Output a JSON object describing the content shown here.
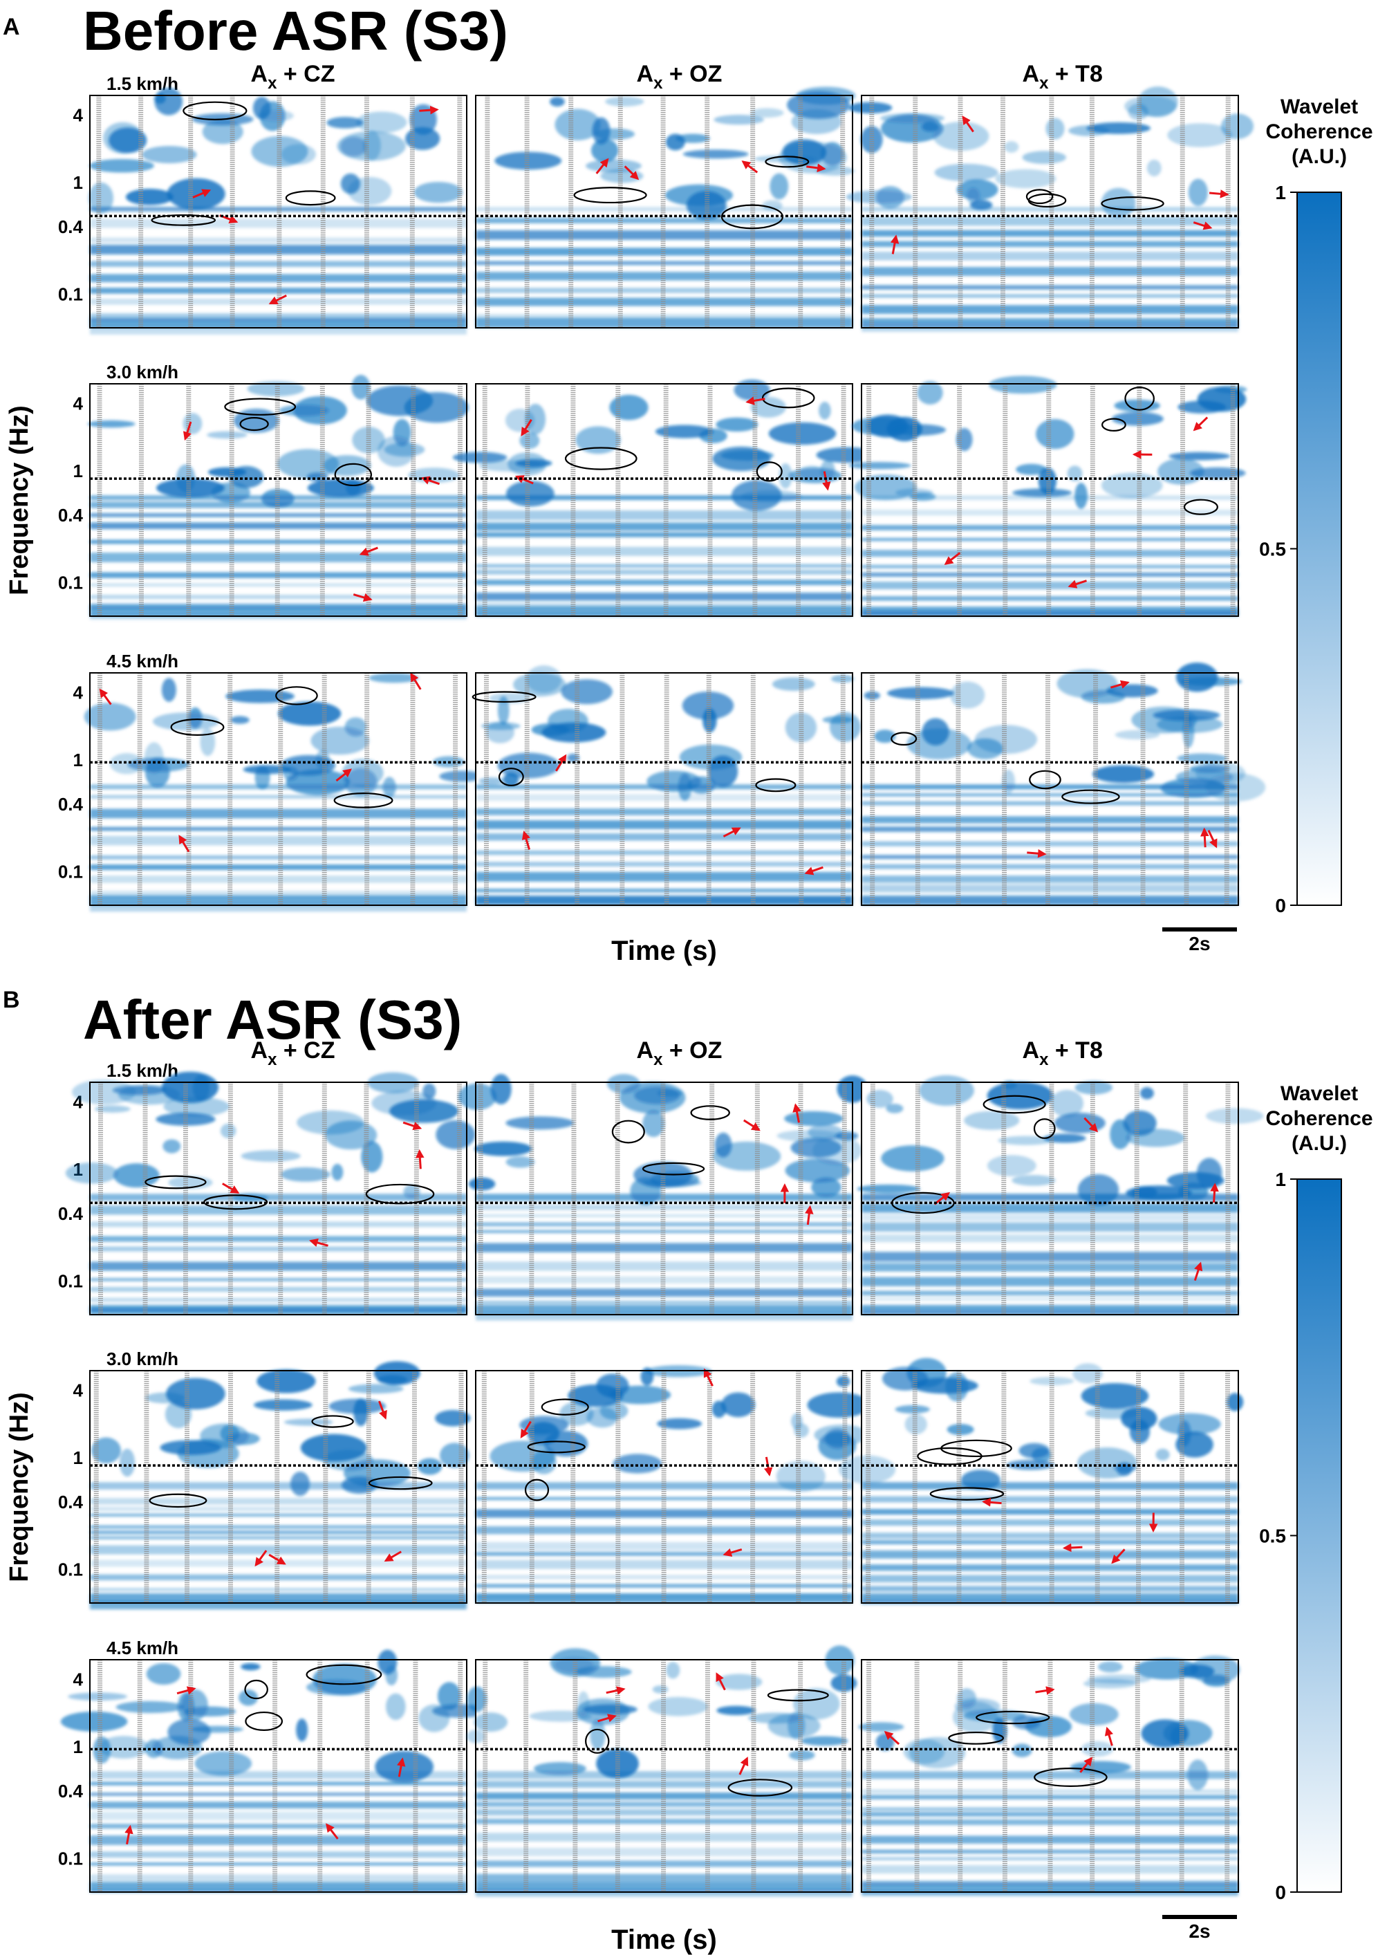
{
  "chart_data": [
    {
      "type": "heatmap",
      "panel_letter": "A",
      "title": "Before ASR (S3)",
      "xlabel": "Time (s)",
      "ylabel": "Frequency (Hz)",
      "columns": [
        "CZ",
        "OZ",
        "T8"
      ],
      "column_prefix": "A",
      "column_subscript": "x",
      "rows": [
        "1.5 km/h",
        "3.0 km/h",
        "4.5 km/h"
      ],
      "y_ticks": [
        "4",
        "1",
        "0.4",
        "0.1"
      ],
      "y_scale": "log",
      "scale_bar": "2s",
      "dotted_line_hz": [
        0.5,
        0.85,
        0.95
      ],
      "colorbar": {
        "title_lines": [
          "Wavelet",
          "Coherence",
          "(A.U.)"
        ],
        "ticks": [
          "1",
          "0.5",
          "0"
        ],
        "range": [
          0,
          1
        ]
      }
    },
    {
      "type": "heatmap",
      "panel_letter": "B",
      "title": "After ASR (S3)",
      "xlabel": "Time (s)",
      "ylabel": "Frequency (Hz)",
      "columns": [
        "CZ",
        "OZ",
        "T8"
      ],
      "column_prefix": "A",
      "column_subscript": "x",
      "rows": [
        "1.5 km/h",
        "3.0 km/h",
        "4.5 km/h"
      ],
      "y_ticks": [
        "4",
        "1",
        "0.4",
        "0.1"
      ],
      "y_scale": "log",
      "scale_bar": "2s",
      "dotted_line_hz": [
        0.5,
        0.85,
        0.95
      ],
      "colorbar": {
        "title_lines": [
          "Wavelet",
          "Coherence",
          "(A.U.)"
        ],
        "ticks": [
          "1",
          "0.5",
          "0"
        ],
        "range": [
          0,
          1
        ]
      }
    }
  ],
  "colors": {
    "high": "#0a6fbf",
    "low": "#ffffff",
    "arrow": "#e8131a",
    "contour": "#000000",
    "stripe": "#8c8c8c"
  }
}
